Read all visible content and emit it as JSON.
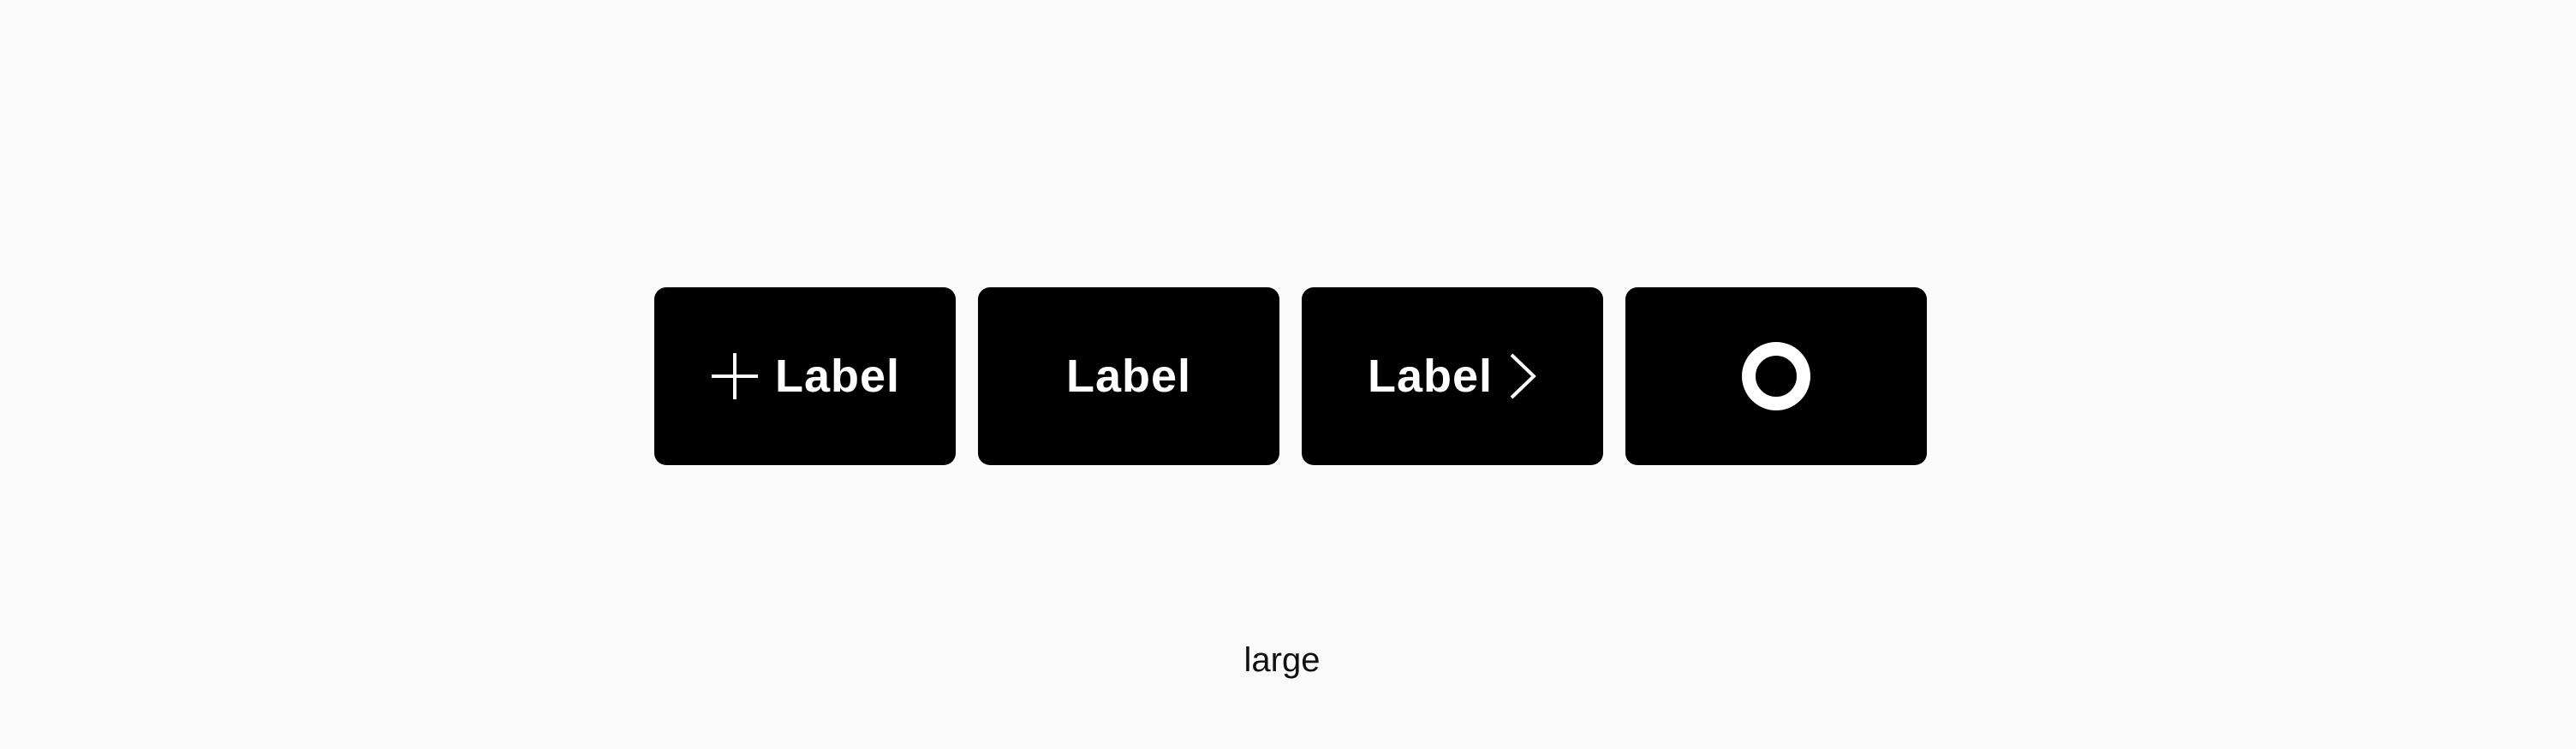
{
  "colors": {
    "background": "#fafafa",
    "button_bg": "#000000",
    "button_fg": "#ffffff",
    "caption_fg": "#111111"
  },
  "buttons": [
    {
      "label": "Label",
      "icon": "plus-icon",
      "icon_position": "leading"
    },
    {
      "label": "Label",
      "icon": null,
      "icon_position": null
    },
    {
      "label": "Label",
      "icon": "chevron-right-icon",
      "icon_position": "trailing"
    },
    {
      "label": "",
      "icon": "circle-icon",
      "icon_position": "only"
    }
  ],
  "caption": "large"
}
